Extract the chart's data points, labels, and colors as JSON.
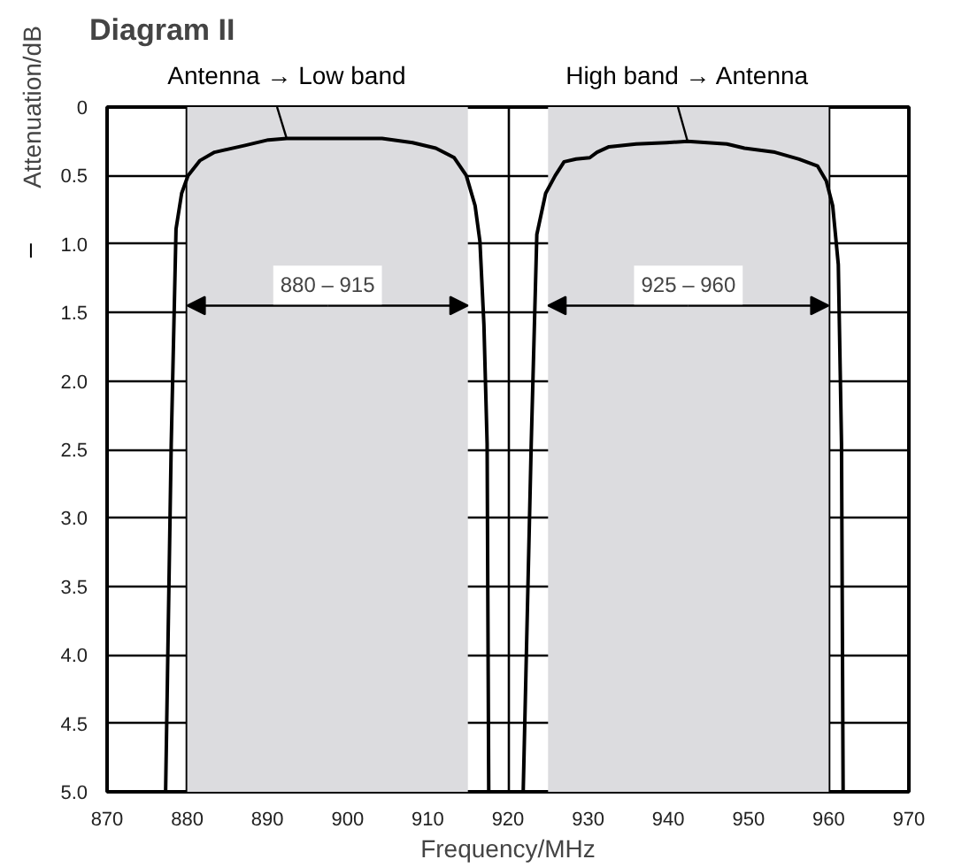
{
  "chart_data": {
    "type": "line",
    "title": "Diagram II",
    "xlabel": "Frequency/MHz",
    "ylabel": "Attenuation/dB",
    "xlim": [
      870,
      970
    ],
    "xticks": [
      870,
      880,
      890,
      900,
      910,
      920,
      930,
      940,
      950,
      960,
      970
    ],
    "ylim": [
      5.0,
      0
    ],
    "yticks": [
      {
        "value": 0,
        "label": "0"
      },
      0.5,
      {
        "value": 1,
        "label": "1.0"
      },
      1.5,
      {
        "value": 2,
        "label": "2.0"
      },
      2.5,
      {
        "value": 3,
        "label": "3.0"
      },
      3.5,
      {
        "value": 4,
        "label": "4.0"
      },
      4.5,
      {
        "value": 5,
        "label": "5.0"
      }
    ],
    "grid": true,
    "legend": false,
    "marker": "none",
    "line_style": "solid",
    "series": [
      {
        "name": "Antenna → Low band",
        "color": "#000000",
        "x": [
          877.3,
          878.0,
          878.6,
          879.3,
          880.1,
          881.6,
          883.4,
          887.2,
          890.1,
          892.4,
          899.9,
          904.3,
          908.1,
          911.0,
          913.3,
          914.8,
          915.9,
          916.5,
          917.0,
          917.4,
          917.6
        ],
        "values": [
          5.0,
          2.46,
          0.89,
          0.63,
          0.5,
          0.39,
          0.33,
          0.28,
          0.24,
          0.23,
          0.23,
          0.23,
          0.26,
          0.3,
          0.37,
          0.5,
          0.72,
          0.98,
          1.59,
          2.46,
          5.0
        ]
      },
      {
        "name": "High band → Antenna",
        "color": "#000000",
        "x": [
          921.9,
          922.9,
          923.6,
          924.7,
          925.9,
          927.0,
          928.5,
          930.2,
          931.1,
          932.6,
          936.0,
          939.8,
          942.4,
          947.3,
          949.5,
          953.3,
          956.3,
          958.6,
          959.7,
          960.5,
          961.2,
          961.6,
          961.8
        ],
        "values": [
          5.0,
          2.46,
          0.93,
          0.63,
          0.5,
          0.4,
          0.38,
          0.37,
          0.33,
          0.29,
          0.27,
          0.26,
          0.25,
          0.27,
          0.3,
          0.33,
          0.38,
          0.43,
          0.54,
          0.72,
          1.15,
          2.46,
          5.0
        ]
      }
    ],
    "bands": [
      {
        "axis": "x",
        "from": 880,
        "to": 915,
        "label": "880 – 915",
        "color": "#dcdcdf"
      },
      {
        "axis": "x",
        "from": 925,
        "to": 960,
        "label": "925 – 960",
        "color": "#dcdcdf"
      }
    ]
  }
}
